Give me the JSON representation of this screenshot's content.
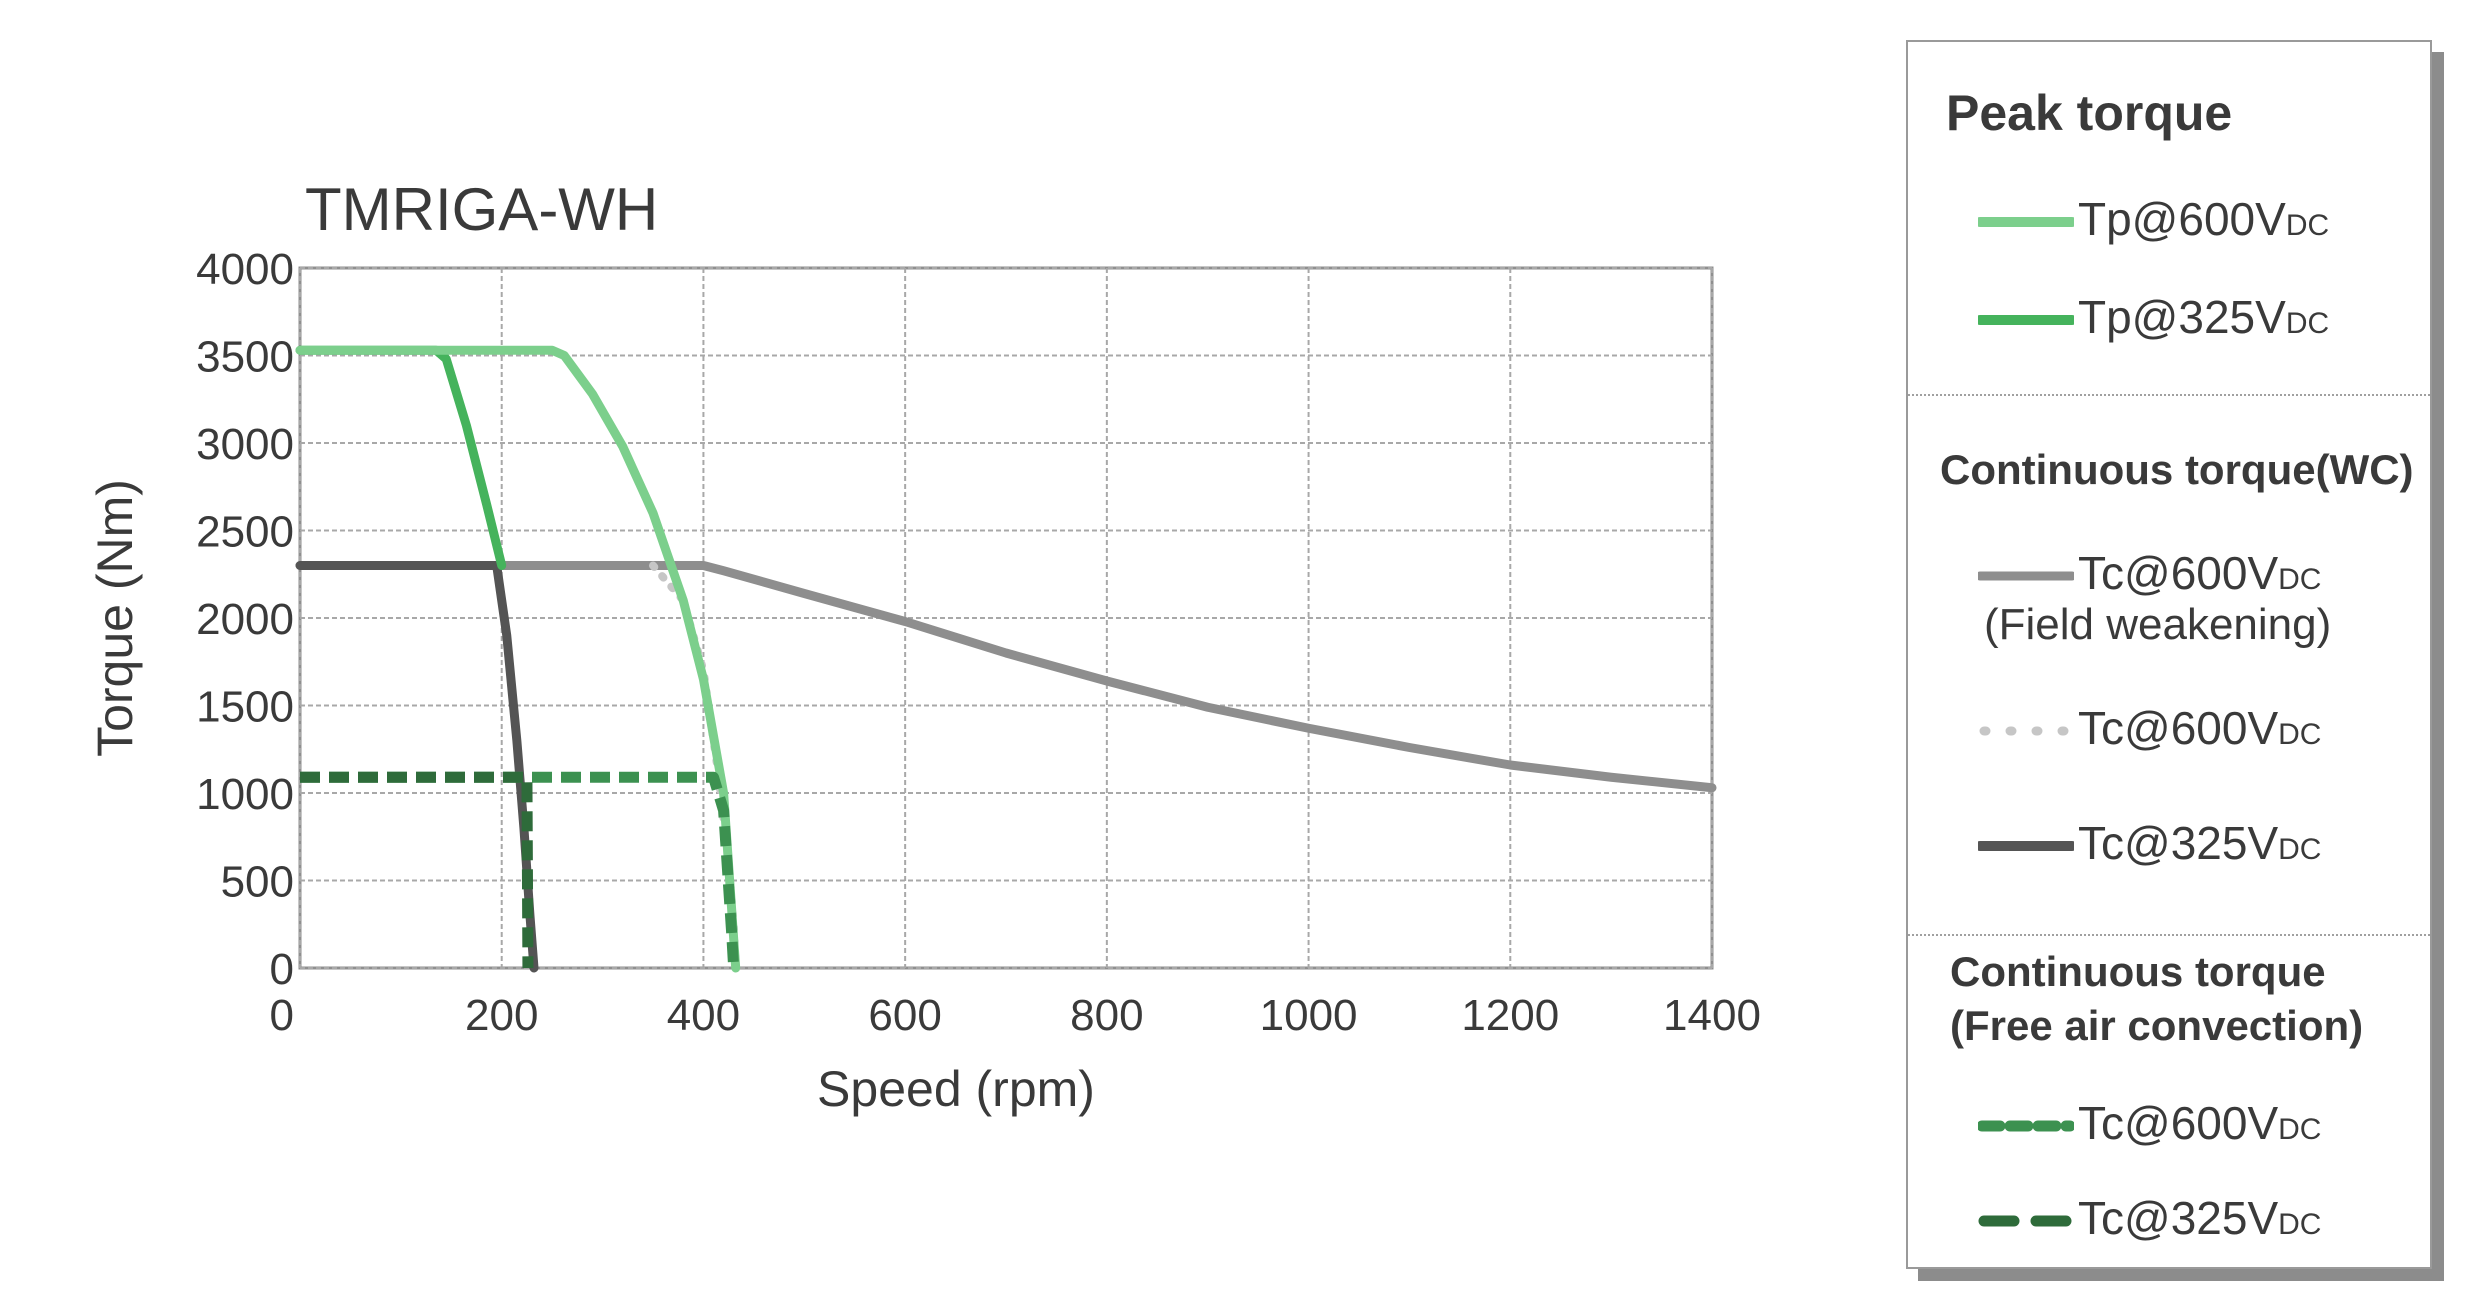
{
  "chart_data": {
    "type": "line",
    "title": "TMRIGA-WH",
    "xlabel": "Speed (rpm)",
    "ylabel": "Torque (Nm)",
    "xlim": [
      0,
      1400
    ],
    "ylim": [
      0,
      4000
    ],
    "xticks": [
      0,
      200,
      400,
      600,
      800,
      1000,
      1200,
      1400
    ],
    "yticks": [
      0,
      500,
      1000,
      1500,
      2000,
      2500,
      3000,
      3500,
      4000
    ],
    "grid": true,
    "legend_position": "right",
    "series": [
      {
        "name": "Tp@600V",
        "subscript": "DC",
        "group": "Peak torque",
        "color": "#7ccf8c",
        "style": "solid",
        "x": [
          0,
          250,
          262,
          290,
          320,
          350,
          380,
          400,
          420,
          432
        ],
        "y": [
          3530,
          3530,
          3500,
          3280,
          2980,
          2600,
          2100,
          1650,
          1000,
          0
        ]
      },
      {
        "name": "Tp@325V",
        "subscript": "DC",
        "group": "Peak torque",
        "color": "#45b35c",
        "style": "solid",
        "x": [
          0,
          135,
          145,
          165,
          185,
          200
        ],
        "y": [
          3530,
          3530,
          3480,
          3100,
          2650,
          2300
        ]
      },
      {
        "name": "Tc@600V",
        "subscript": "DC",
        "sublabel": "(Field weakening)",
        "group": "Continuous torque(WC)",
        "color": "#8e8e8e",
        "style": "solid",
        "x": [
          0,
          400,
          420,
          500,
          600,
          700,
          800,
          900,
          1000,
          1100,
          1200,
          1300,
          1400
        ],
        "y": [
          2300,
          2300,
          2270,
          2140,
          1980,
          1800,
          1640,
          1490,
          1370,
          1260,
          1160,
          1090,
          1030
        ]
      },
      {
        "name": "Tc@600V",
        "subscript": "DC",
        "group": "Continuous torque(WC)",
        "color": "#c6c6c6",
        "style": "dotted",
        "x": [
          350,
          380,
          400,
          415,
          425,
          430,
          432
        ],
        "y": [
          2300,
          2100,
          1700,
          1100,
          600,
          250,
          0
        ]
      },
      {
        "name": "Tc@325V",
        "subscript": "DC",
        "group": "Continuous torque(WC)",
        "color": "#545454",
        "style": "solid",
        "x": [
          0,
          195,
          205,
          215,
          222,
          228,
          232
        ],
        "y": [
          2300,
          2300,
          1900,
          1300,
          800,
          300,
          0
        ]
      },
      {
        "name": "Tc@600V",
        "subscript": "DC",
        "group": "Continuous torque (Free air convection)",
        "color": "#3c9150",
        "style": "dashed",
        "x": [
          0,
          410,
          420,
          424,
          428,
          430
        ],
        "y": [
          1090,
          1090,
          900,
          550,
          200,
          0
        ]
      },
      {
        "name": "Tc@325V",
        "subscript": "DC",
        "group": "Continuous torque (Free air convection)",
        "color": "#2e6b3a",
        "style": "dashed",
        "x": [
          0,
          225,
          226
        ],
        "y": [
          1090,
          1090,
          0
        ]
      }
    ]
  },
  "legend": {
    "sections": [
      {
        "title": "Peak torque",
        "entries": [
          {
            "label": "Tp@600V",
            "sub": "DC",
            "color": "#7ccf8c",
            "style": "solid"
          },
          {
            "label": "Tp@325V",
            "sub": "DC",
            "color": "#45b35c",
            "style": "solid"
          }
        ]
      },
      {
        "title": "Continuous torque(WC)",
        "entries": [
          {
            "label": "Tc@600V",
            "sub": "DC",
            "extra": "(Field weakening)",
            "color": "#8e8e8e",
            "style": "solid"
          },
          {
            "label": "Tc@600V",
            "sub": "DC",
            "color": "#c6c6c6",
            "style": "dotted"
          },
          {
            "label": "Tc@325V",
            "sub": "DC",
            "color": "#545454",
            "style": "solid"
          }
        ]
      },
      {
        "title_line1": "Continuous torque",
        "title_line2": "(Free air convection)",
        "entries": [
          {
            "label": "Tc@600V",
            "sub": "DC",
            "color": "#3c9150",
            "style": "dashed"
          },
          {
            "label": "Tc@325V",
            "sub": "DC",
            "color": "#2e6b3a",
            "style": "dashed"
          }
        ]
      }
    ]
  }
}
